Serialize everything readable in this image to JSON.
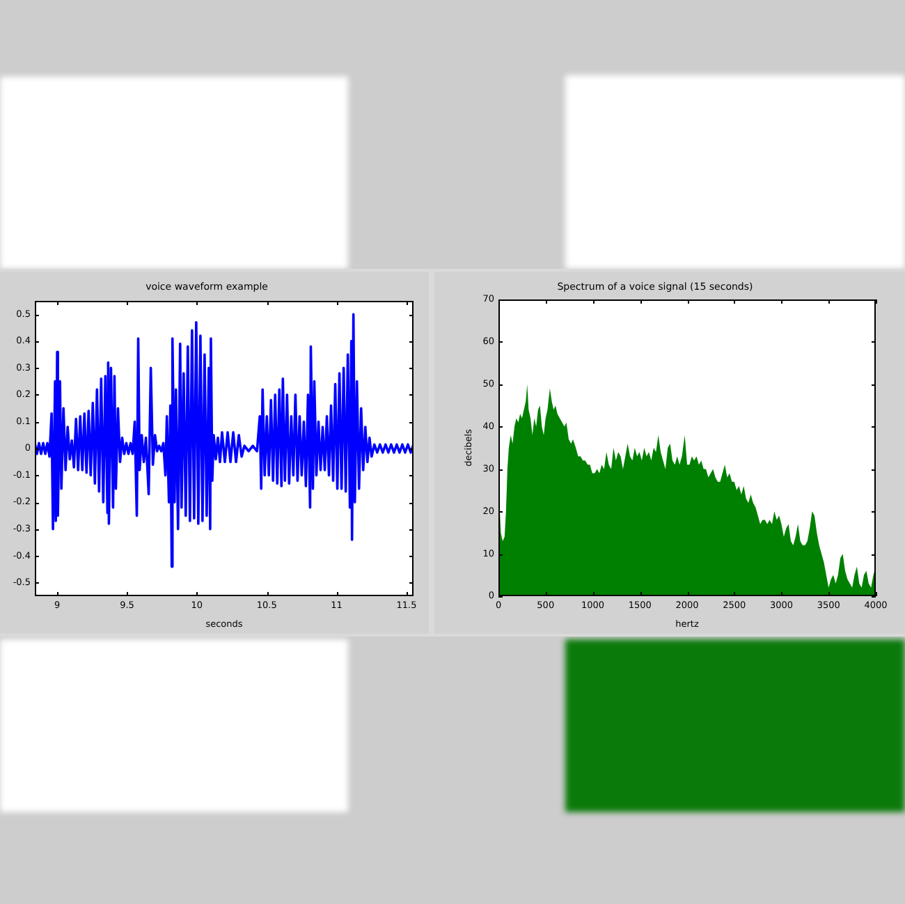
{
  "chart_data": [
    {
      "type": "line",
      "title": "voice waveform example",
      "xlabel": "seconds",
      "color": "#0000ff",
      "x": [
        8.84,
        8.855,
        8.87,
        8.885,
        8.9,
        8.915,
        8.93,
        8.945,
        8.96,
        8.97,
        8.985,
        8.99,
        9.0,
        9.005,
        9.02,
        9.03,
        9.045,
        9.06,
        9.075,
        9.09,
        9.105,
        9.12,
        9.135,
        9.15,
        9.165,
        9.18,
        9.195,
        9.21,
        9.225,
        9.24,
        9.255,
        9.27,
        9.285,
        9.3,
        9.315,
        9.33,
        9.345,
        9.36,
        9.365,
        9.37,
        9.385,
        9.4,
        9.41,
        9.42,
        9.435,
        9.45,
        9.465,
        9.48,
        9.495,
        9.51,
        9.525,
        9.54,
        9.555,
        9.57,
        9.58,
        9.59,
        9.605,
        9.62,
        9.635,
        9.655,
        9.67,
        9.685,
        9.7,
        9.715,
        9.73,
        9.745,
        9.76,
        9.775,
        9.785,
        9.8,
        9.81,
        9.82,
        9.825,
        9.84,
        9.85,
        9.865,
        9.88,
        9.89,
        9.905,
        9.92,
        9.935,
        9.95,
        9.965,
        9.98,
        9.995,
        10.01,
        10.025,
        10.04,
        10.055,
        10.07,
        10.085,
        10.095,
        10.1,
        10.11,
        10.12,
        10.135,
        10.15,
        10.165,
        10.18,
        10.2,
        10.22,
        10.24,
        10.26,
        10.28,
        10.3,
        10.32,
        10.34,
        10.37,
        10.4,
        10.43,
        10.45,
        10.46,
        10.47,
        10.485,
        10.5,
        10.515,
        10.53,
        10.545,
        10.56,
        10.575,
        10.59,
        10.605,
        10.615,
        10.63,
        10.645,
        10.66,
        10.675,
        10.69,
        10.705,
        10.72,
        10.735,
        10.75,
        10.765,
        10.78,
        10.795,
        10.81,
        10.815,
        10.83,
        10.84,
        10.855,
        10.87,
        10.885,
        10.9,
        10.915,
        10.93,
        10.945,
        10.96,
        10.975,
        10.99,
        11.005,
        11.02,
        11.035,
        11.05,
        11.065,
        11.08,
        11.095,
        11.105,
        11.11,
        11.12,
        11.13,
        11.145,
        11.16,
        11.175,
        11.19,
        11.205,
        11.22,
        11.235,
        11.25,
        11.27,
        11.29,
        11.31,
        11.33,
        11.35,
        11.37,
        11.39,
        11.41,
        11.43,
        11.45,
        11.47,
        11.49,
        11.51,
        11.53,
        11.55
      ],
      "values": [
        0.02,
        -0.02,
        0.02,
        -0.02,
        0.02,
        -0.02,
        0.02,
        -0.03,
        0.13,
        -0.3,
        0.25,
        -0.27,
        0.36,
        -0.25,
        0.25,
        -0.15,
        0.15,
        -0.08,
        0.08,
        -0.04,
        0.03,
        -0.07,
        0.11,
        -0.08,
        0.12,
        -0.08,
        0.13,
        -0.09,
        0.14,
        -0.1,
        0.17,
        -0.13,
        0.22,
        -0.16,
        0.26,
        -0.2,
        0.27,
        -0.24,
        0.32,
        -0.28,
        0.3,
        -0.22,
        0.27,
        -0.15,
        0.15,
        -0.05,
        0.04,
        -0.02,
        0.02,
        -0.02,
        0.02,
        -0.02,
        0.1,
        -0.25,
        0.41,
        -0.08,
        0.05,
        -0.05,
        0.04,
        -0.17,
        0.3,
        -0.06,
        0.05,
        -0.01,
        0.01,
        -0.01,
        0.02,
        -0.1,
        0.12,
        -0.2,
        0.16,
        -0.44,
        0.41,
        -0.2,
        0.22,
        -0.3,
        0.39,
        -0.22,
        0.28,
        -0.25,
        0.38,
        -0.27,
        0.44,
        -0.26,
        0.47,
        -0.28,
        0.42,
        -0.27,
        0.35,
        -0.25,
        0.3,
        -0.3,
        0.41,
        -0.12,
        0.05,
        -0.04,
        0.04,
        -0.05,
        0.06,
        -0.05,
        0.06,
        -0.05,
        0.06,
        -0.05,
        0.05,
        -0.03,
        0.01,
        -0.01,
        0.01,
        -0.01,
        0.12,
        -0.15,
        0.22,
        -0.1,
        0.12,
        -0.1,
        0.18,
        -0.12,
        0.2,
        -0.13,
        0.22,
        -0.14,
        0.26,
        -0.12,
        0.2,
        -0.13,
        0.12,
        -0.1,
        0.2,
        -0.12,
        0.12,
        -0.1,
        0.1,
        -0.14,
        0.2,
        -0.22,
        0.38,
        -0.15,
        0.25,
        -0.1,
        0.1,
        -0.08,
        0.08,
        -0.08,
        0.12,
        -0.1,
        0.16,
        -0.12,
        0.24,
        -0.15,
        0.28,
        -0.15,
        0.3,
        -0.16,
        0.35,
        -0.22,
        0.4,
        -0.34,
        0.5,
        -0.2,
        0.25,
        -0.15,
        0.15,
        -0.08,
        0.08,
        -0.05,
        0.04,
        -0.03,
        0.015,
        -0.015,
        0.015,
        -0.015,
        0.015,
        -0.015,
        0.015,
        -0.015,
        0.015,
        -0.015,
        0.015,
        -0.015,
        0.015,
        -0.015,
        0.015
      ],
      "xlim": [
        8.84,
        11.55
      ],
      "ylim": [
        -0.55,
        0.55
      ],
      "xticks": [
        9,
        9.5,
        10,
        10.5,
        11,
        11.5
      ],
      "yticks": [
        -0.5,
        -0.4,
        -0.3,
        -0.2,
        -0.1,
        0,
        0.1,
        0.2,
        0.3,
        0.4,
        0.5
      ]
    },
    {
      "type": "area",
      "title": "Spectrum of a voice signal (15 seconds)",
      "xlabel": "hertz",
      "ylabel": "decibels",
      "color": "#008000",
      "x": [
        0,
        10,
        25,
        45,
        65,
        80,
        95,
        110,
        130,
        150,
        170,
        190,
        210,
        230,
        250,
        270,
        290,
        305,
        320,
        340,
        360,
        380,
        400,
        420,
        440,
        460,
        480,
        500,
        520,
        545,
        565,
        585,
        605,
        625,
        650,
        675,
        700,
        720,
        745,
        770,
        790,
        820,
        845,
        870,
        895,
        920,
        945,
        970,
        995,
        1020,
        1045,
        1070,
        1095,
        1120,
        1145,
        1170,
        1195,
        1220,
        1245,
        1270,
        1295,
        1320,
        1345,
        1370,
        1395,
        1420,
        1445,
        1470,
        1495,
        1520,
        1545,
        1570,
        1595,
        1620,
        1645,
        1670,
        1695,
        1720,
        1745,
        1770,
        1795,
        1820,
        1845,
        1870,
        1895,
        1920,
        1945,
        1975,
        2000,
        2025,
        2050,
        2075,
        2100,
        2125,
        2150,
        2175,
        2200,
        2225,
        2250,
        2275,
        2300,
        2325,
        2350,
        2375,
        2400,
        2425,
        2450,
        2475,
        2500,
        2525,
        2550,
        2575,
        2600,
        2625,
        2650,
        2675,
        2700,
        2725,
        2750,
        2775,
        2800,
        2825,
        2850,
        2875,
        2900,
        2925,
        2950,
        2975,
        3000,
        3025,
        3050,
        3075,
        3100,
        3125,
        3150,
        3175,
        3200,
        3225,
        3250,
        3275,
        3300,
        3325,
        3350,
        3375,
        3400,
        3425,
        3450,
        3475,
        3500,
        3525,
        3550,
        3575,
        3600,
        3625,
        3650,
        3675,
        3700,
        3725,
        3750,
        3775,
        3800,
        3825,
        3850,
        3875,
        3900,
        3925,
        3950,
        3975,
        4000
      ],
      "values": [
        48,
        22,
        15,
        13,
        14,
        20,
        30,
        35,
        38,
        36,
        40,
        42,
        41,
        43,
        42,
        44,
        46,
        50,
        44,
        42,
        38,
        42,
        40,
        44,
        45,
        40,
        38,
        42,
        44,
        49,
        46,
        44,
        45,
        43,
        42,
        41,
        40,
        41,
        37,
        36,
        37,
        35,
        33,
        33,
        32,
        32,
        31,
        31,
        29,
        29,
        30,
        29,
        31,
        30,
        34,
        31,
        30,
        35,
        32,
        34,
        33,
        30,
        33,
        36,
        33,
        32,
        35,
        33,
        34,
        32,
        35,
        33,
        34,
        32,
        35,
        34,
        38,
        34,
        32,
        30,
        35,
        36,
        32,
        31,
        33,
        31,
        33,
        38,
        31,
        31,
        33,
        32,
        33,
        31,
        32,
        30,
        30,
        28,
        29,
        30,
        28,
        27,
        27,
        29,
        31,
        28,
        29,
        27,
        27,
        25,
        26,
        24,
        26,
        23,
        22,
        24,
        22,
        21,
        19,
        17,
        18,
        18,
        17,
        18,
        17,
        20,
        18,
        19,
        17,
        14,
        16,
        17,
        13,
        12,
        14,
        17,
        13,
        12,
        12,
        13,
        16,
        20,
        19,
        15,
        12,
        10,
        8,
        5,
        2,
        4,
        5,
        3,
        5,
        9,
        10,
        6,
        4,
        3,
        2,
        5,
        7,
        3,
        2,
        5,
        6,
        3,
        2,
        5,
        7
      ],
      "xlim": [
        0,
        4000
      ],
      "ylim": [
        0,
        70
      ],
      "xticks": [
        0,
        500,
        1000,
        1500,
        2000,
        2500,
        3000,
        3500,
        4000
      ],
      "yticks": [
        0,
        10,
        20,
        30,
        40,
        50,
        60,
        70
      ]
    }
  ]
}
